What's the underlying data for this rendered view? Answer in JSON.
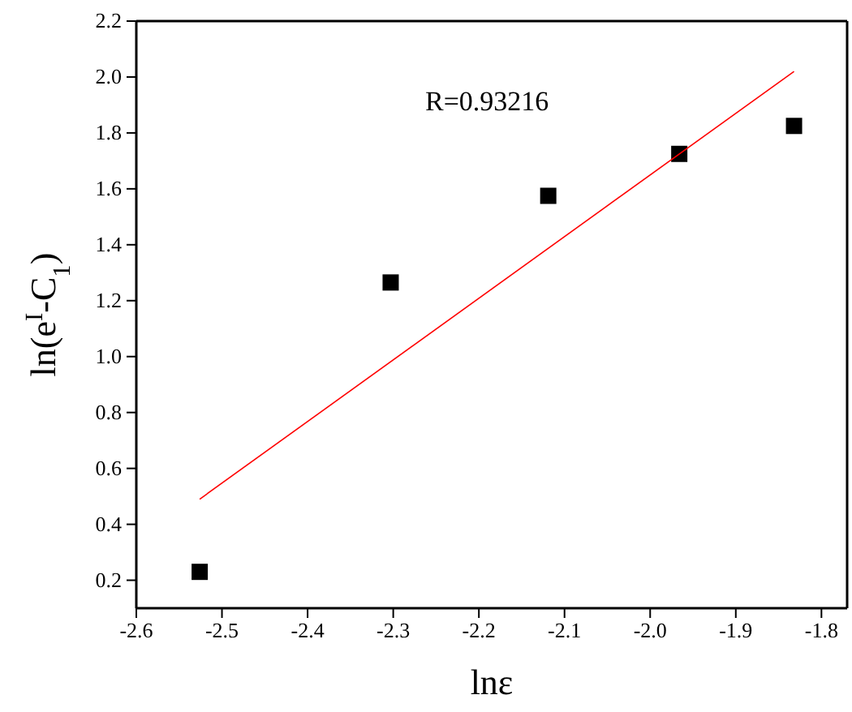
{
  "chart_data": {
    "type": "scatter",
    "xlabel": "lnε",
    "ylabel": "ln(e$^{I}$-C$_{1}$)",
    "annotations": [
      "R=0.93216"
    ],
    "grid": false,
    "xlim": [
      -2.6,
      -1.77
    ],
    "xticks": [
      -2.6,
      -2.5,
      -2.4,
      -2.3,
      -2.2,
      -2.1,
      {
        "value": -2.0,
        "label": "-2.0"
      },
      -1.9,
      -1.8
    ],
    "ylim": [
      0.1,
      2.2
    ],
    "yticks": [
      0.2,
      0.4,
      0.6,
      0.8,
      {
        "value": 1.0,
        "label": "1.0"
      },
      1.2,
      1.4,
      1.6,
      1.8,
      {
        "value": 2.0,
        "label": "2.0"
      },
      2.2
    ],
    "series": [
      {
        "color": "#000000",
        "marker": "square",
        "x": [
          -2.526,
          -2.303,
          -2.119,
          -1.966,
          -1.832
        ],
        "values": [
          0.23,
          1.265,
          1.575,
          1.725,
          1.825
        ]
      },
      {
        "type": "line",
        "color": "#ff0000",
        "x": [
          -2.526,
          -1.832
        ],
        "values": [
          0.49,
          2.02
        ]
      }
    ]
  }
}
